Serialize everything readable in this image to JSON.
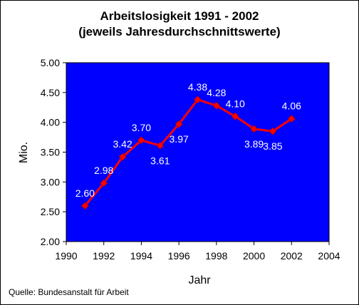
{
  "chart_data": {
    "type": "line",
    "title": "Arbeitslosigkeit 1991 - 2002",
    "subtitle": "(jeweils Jahresdurchschnittswerte)",
    "xlabel": "Jahr",
    "ylabel": "Mio.",
    "xlim": [
      1990,
      2004
    ],
    "ylim": [
      2.0,
      5.0
    ],
    "x_ticks": [
      "1990",
      "1992",
      "1994",
      "1996",
      "1998",
      "2000",
      "2002",
      "2004"
    ],
    "y_ticks": [
      "2.00",
      "2.50",
      "3.00",
      "3.50",
      "4.00",
      "4.50",
      "5.00"
    ],
    "x": [
      1991,
      1992,
      1993,
      1994,
      1995,
      1996,
      1997,
      1998,
      1999,
      2000,
      2001,
      2002
    ],
    "values": [
      2.6,
      2.98,
      3.42,
      3.7,
      3.61,
      3.97,
      4.38,
      4.28,
      4.1,
      3.89,
      3.85,
      4.06
    ],
    "labels": [
      "2.60",
      "2.98",
      "3.42",
      "3.70",
      "3.61",
      "3.97",
      "4.38",
      "4.28",
      "4.10",
      "3.89",
      "3.85",
      "4.06"
    ],
    "colors": {
      "plot_background": "#0000ff",
      "line": "#ff0000",
      "label_text": "#ffffff"
    },
    "grid": false,
    "legend": "none"
  },
  "source": "Quelle: Bundesanstalt für Arbeit"
}
